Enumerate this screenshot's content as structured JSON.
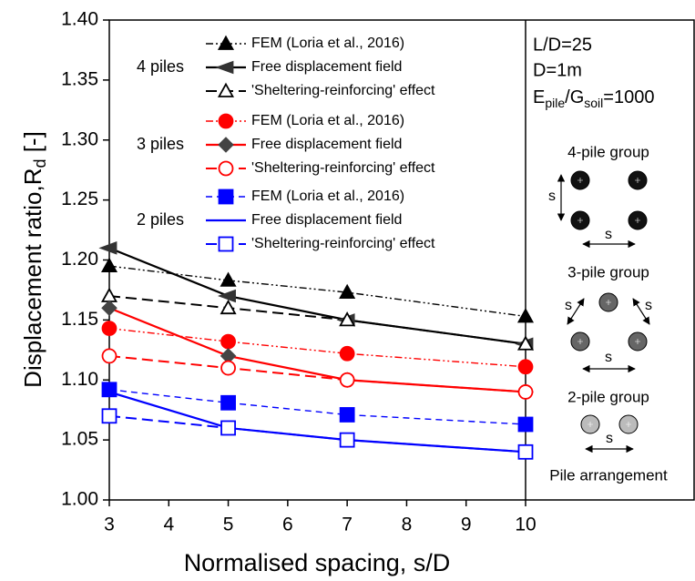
{
  "chart_data": {
    "type": "line",
    "ylabel": "Displacement ratio,R",
    "ylabel_sub": "d",
    "ylabel_unit": " [-]",
    "xlabel": "Normalised spacing, s/D",
    "x": [
      3,
      5,
      7,
      10
    ],
    "xlim": [
      3,
      10
    ],
    "xticks": [
      3,
      4,
      5,
      6,
      7,
      8,
      9,
      10
    ],
    "ylim": [
      1.0,
      1.4
    ],
    "yticks": [
      {
        "value": 1.0,
        "label": "1.00"
      },
      {
        "value": 1.05,
        "label": "1.05"
      },
      {
        "value": 1.1,
        "label": "1.10"
      },
      {
        "value": 1.15,
        "label": "1.15"
      },
      {
        "value": 1.2,
        "label": "1.20"
      },
      {
        "value": 1.25,
        "label": "1.25"
      },
      {
        "value": 1.3,
        "label": "1.30"
      },
      {
        "value": 1.35,
        "label": "1.35"
      },
      {
        "value": 1.4,
        "label": "1.40"
      }
    ],
    "legend_groups": [
      {
        "name": "4 piles",
        "color": "#000000"
      },
      {
        "name": "3 piles",
        "color": "#ff0000"
      },
      {
        "name": "2 piles",
        "color": "#0000ff"
      }
    ],
    "series": [
      {
        "name": "FEM (Loria et al., 2016)",
        "color": "#000000",
        "marker": "triangle-up",
        "marker_fill": "#000000",
        "dash": "dashdotdot",
        "values": [
          1.195,
          1.183,
          1.173,
          1.153
        ]
      },
      {
        "name": "Free displacement field",
        "color": "#000000",
        "marker": "triangle-left",
        "marker_fill": "#333333",
        "dash": "solid",
        "values": [
          1.21,
          1.17,
          1.15,
          1.13
        ]
      },
      {
        "name": "'Sheltering-reinforcing' effect",
        "color": "#000000",
        "marker": "triangle-up",
        "marker_fill": "#ffffff",
        "dash": "dashed",
        "values": [
          1.17,
          1.16,
          1.15,
          1.13
        ]
      },
      {
        "name": "FEM (Loria et al., 2016)",
        "color": "#ff0000",
        "marker": "circle",
        "marker_fill": "#ff0000",
        "dash": "dashdotdot",
        "values": [
          1.143,
          1.132,
          1.122,
          1.111
        ]
      },
      {
        "name": "Free displacement field",
        "color": "#ff0000",
        "marker": "diamond",
        "marker_fill": "#444444",
        "dash": "solid",
        "values": [
          1.16,
          1.12,
          1.1,
          1.09
        ]
      },
      {
        "name": "'Sheltering-reinforcing' effect",
        "color": "#ff0000",
        "marker": "circle",
        "marker_fill": "#ffffff",
        "dash": "dashed",
        "values": [
          1.12,
          1.11,
          1.1,
          1.09
        ]
      },
      {
        "name": "FEM (Loria et al., 2016)",
        "color": "#0000ff",
        "marker": "square",
        "marker_fill": "#0000ff",
        "dash": "dashed-fine",
        "values": [
          1.092,
          1.081,
          1.071,
          1.063
        ]
      },
      {
        "name": "Free displacement field",
        "color": "#0000ff",
        "marker": "none",
        "marker_fill": "none",
        "dash": "solid",
        "values": [
          1.09,
          1.06,
          1.05,
          1.04
        ]
      },
      {
        "name": "'Sheltering-reinforcing' effect",
        "color": "#0000ff",
        "marker": "square",
        "marker_fill": "#ffffff",
        "dash": "dashed",
        "values": [
          1.07,
          1.06,
          1.05,
          1.04
        ]
      }
    ],
    "panel": {
      "lines": [
        "L/D=25",
        "D=1m"
      ],
      "modulus": {
        "e": "E",
        "e_sub": "pile",
        "g": "/G",
        "g_sub": "soil",
        "rest": "=1000"
      },
      "groups": [
        {
          "title": "4-pile group",
          "spacing_labels": [
            "s",
            "s"
          ]
        },
        {
          "title": "3-pile group",
          "spacing_labels": [
            "s",
            "s",
            "s"
          ]
        },
        {
          "title": "2-pile group",
          "spacing_labels": [
            "s"
          ]
        }
      ],
      "caption": "Pile arrangement"
    }
  }
}
